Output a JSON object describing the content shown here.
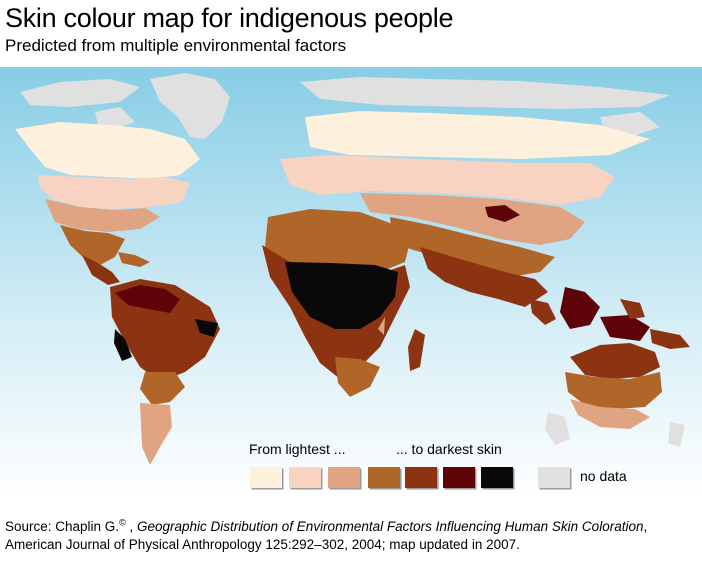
{
  "header": {
    "title": "Skin colour map for indigenous people",
    "subtitle": "Predicted from multiple environmental factors"
  },
  "legend": {
    "lightest_label": "From lightest ...",
    "darkest_label": "... to darkest skin",
    "no_data_label": "no data",
    "swatches": [
      "#fdf0dc",
      "#f8d3c2",
      "#e0a482",
      "#b06628",
      "#8c3412",
      "#5e0408",
      "#0a0808"
    ],
    "no_data_color": "#e0e0e0"
  },
  "colors": {
    "ocean_top": "#87cde6",
    "ocean_bottom": "#ffffff"
  },
  "source": {
    "prefix": "Source: Chaplin G.",
    "copyright": "©",
    "sep": " , ",
    "article_title": "Geographic Distribution of Environmental Factors Influencing Human Skin Coloration",
    "journal": ", American Journal of Physical Anthropology 125:292–302, 2004; map updated in 2007."
  }
}
